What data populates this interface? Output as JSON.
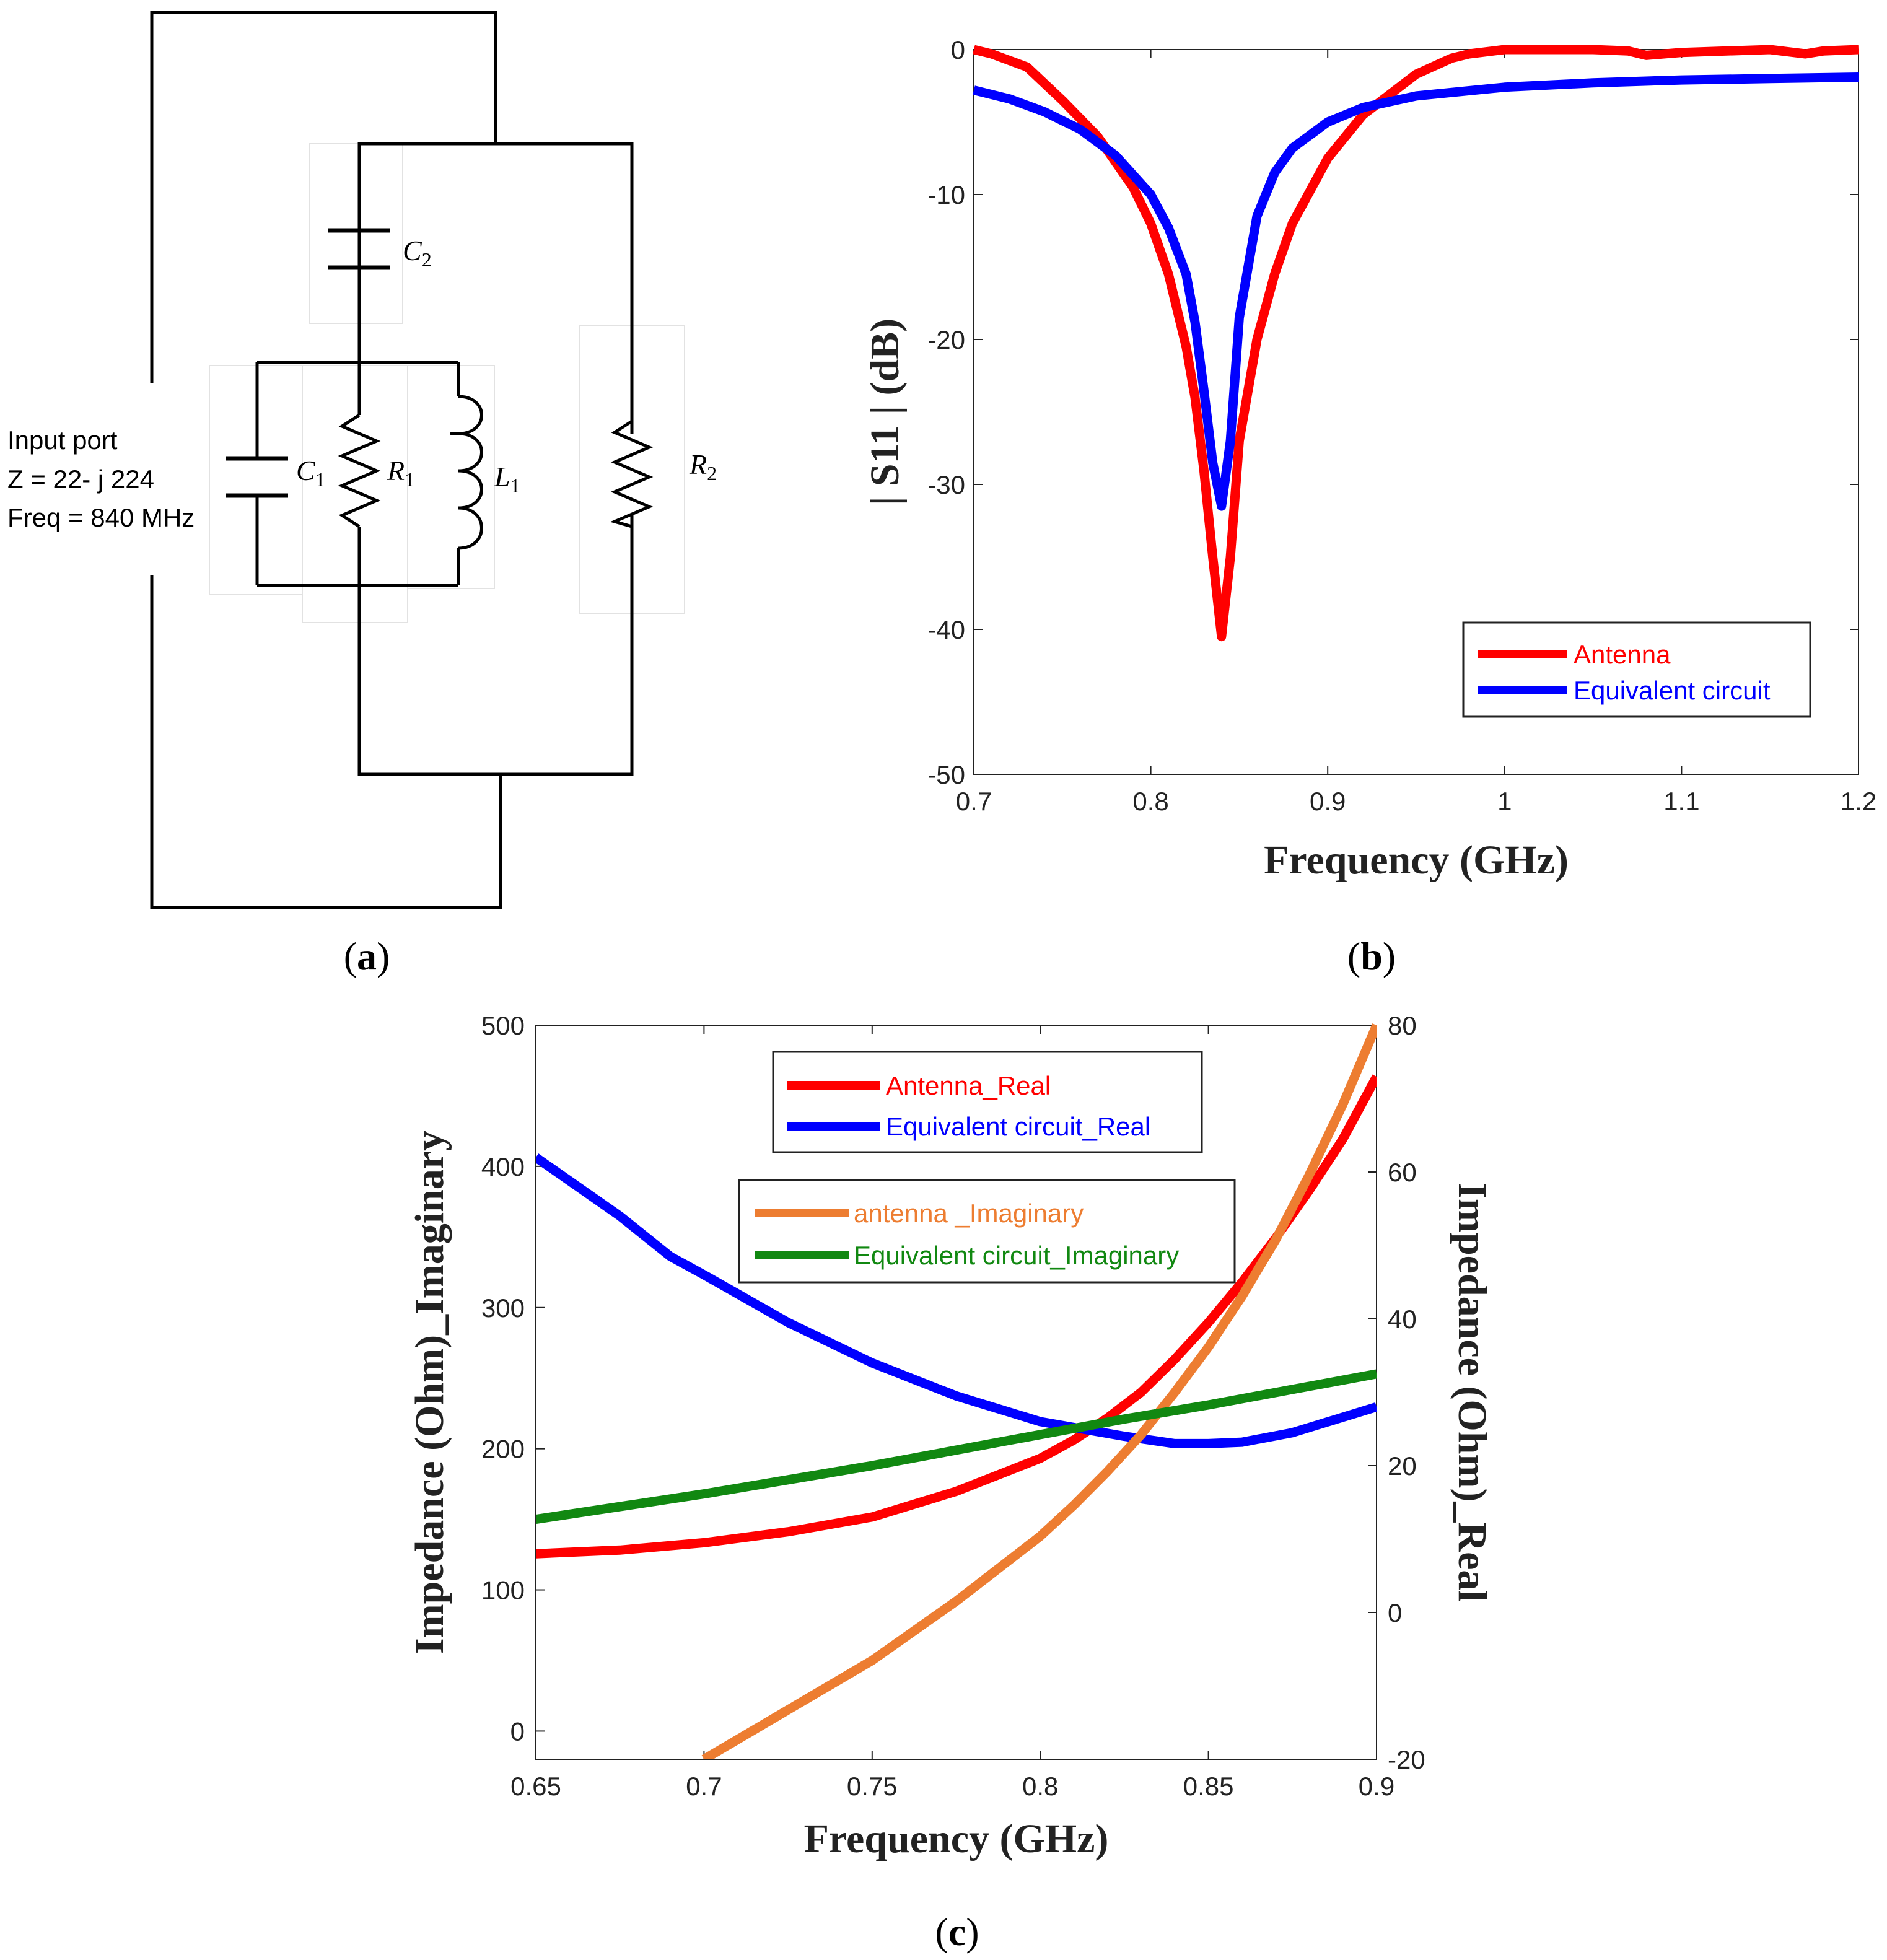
{
  "panel_a": {
    "caption": "a",
    "port_line1": "Input port",
    "port_line2": "Z = 22- j 224",
    "port_line3": "Freq = 840 MHz",
    "c2": "C",
    "c2_sub": "2",
    "c1": "C",
    "c1_sub": "1",
    "r1": "R",
    "r1_sub": "1",
    "l1": "L",
    "l1_sub": "1",
    "r2": "R",
    "r2_sub": "2"
  },
  "panel_b": {
    "caption": "b"
  },
  "panel_c": {
    "caption": "c"
  },
  "chart_data": [
    {
      "type": "line",
      "xlabel": "Frequency (GHz)",
      "ylabel": "| S11 | (dB)",
      "xlim": [
        0.7,
        1.2
      ],
      "ylim": [
        -50,
        0
      ],
      "xticks": [
        0.7,
        0.8,
        0.9,
        1,
        1.1,
        1.2
      ],
      "yticks": [
        0,
        -10,
        -20,
        -30,
        -40,
        -50
      ],
      "legend_position": "bottom-right",
      "series": [
        {
          "name": "Antenna",
          "color": "#ff0000",
          "x": [
            0.7,
            0.71,
            0.73,
            0.75,
            0.77,
            0.79,
            0.8,
            0.81,
            0.82,
            0.825,
            0.83,
            0.835,
            0.84,
            0.845,
            0.85,
            0.86,
            0.87,
            0.88,
            0.9,
            0.92,
            0.95,
            0.97,
            0.98,
            1.0,
            1.05,
            1.07,
            1.08,
            1.1,
            1.15,
            1.17,
            1.18,
            1.2
          ],
          "y": [
            0.0,
            -0.3,
            -1.2,
            -3.5,
            -6.0,
            -9.5,
            -12.0,
            -15.5,
            -20.5,
            -24.0,
            -29.0,
            -35.0,
            -40.5,
            -35.0,
            -27.0,
            -20.0,
            -15.5,
            -12.0,
            -7.5,
            -4.5,
            -1.7,
            -0.6,
            -0.3,
            0.0,
            0.0,
            -0.1,
            -0.4,
            -0.2,
            0.0,
            -0.3,
            -0.1,
            0.0
          ]
        },
        {
          "name": "Equivalent circuit",
          "color": "#0000ff",
          "x": [
            0.7,
            0.72,
            0.74,
            0.76,
            0.78,
            0.8,
            0.81,
            0.82,
            0.825,
            0.83,
            0.835,
            0.84,
            0.845,
            0.85,
            0.86,
            0.87,
            0.88,
            0.9,
            0.92,
            0.95,
            1.0,
            1.05,
            1.1,
            1.15,
            1.2
          ],
          "y": [
            -2.8,
            -3.4,
            -4.3,
            -5.5,
            -7.3,
            -10.0,
            -12.3,
            -15.5,
            -18.8,
            -23.5,
            -28.5,
            -31.5,
            -27.0,
            -18.5,
            -11.5,
            -8.5,
            -6.8,
            -5.0,
            -4.0,
            -3.2,
            -2.6,
            -2.3,
            -2.1,
            -2.0,
            -1.9
          ]
        }
      ]
    },
    {
      "type": "line",
      "xlabel": "Frequency (GHz)",
      "ylabel_left": "Impedance (Ohm)_Imaginary",
      "ylabel_right": "Impedance (Ohm)_Real",
      "xlim": [
        0.65,
        0.9
      ],
      "ylim_left": [
        -20,
        500
      ],
      "ylim_right": [
        -20,
        80
      ],
      "xticks": [
        0.65,
        0.7,
        0.75,
        0.8,
        0.85,
        0.9
      ],
      "yticks_left": [
        0,
        100,
        200,
        300,
        400,
        500
      ],
      "yticks_right": [
        -20,
        0,
        20,
        40,
        60,
        80
      ],
      "series": [
        {
          "name": "Antenna_Real",
          "axis": "right",
          "color": "#ff0000",
          "x": [
            0.65,
            0.675,
            0.7,
            0.725,
            0.75,
            0.775,
            0.8,
            0.81,
            0.82,
            0.83,
            0.84,
            0.85,
            0.86,
            0.87,
            0.88,
            0.89,
            0.9
          ],
          "y": [
            8.0,
            8.5,
            9.5,
            11.0,
            13.0,
            16.5,
            21.0,
            23.5,
            26.5,
            30.0,
            34.5,
            39.5,
            45.0,
            51.0,
            57.5,
            64.5,
            73.0
          ]
        },
        {
          "name": "Equivalent circuit_Real",
          "axis": "right",
          "color": "#0000ff",
          "x": [
            0.65,
            0.675,
            0.69,
            0.7,
            0.725,
            0.75,
            0.775,
            0.8,
            0.825,
            0.84,
            0.85,
            0.86,
            0.875,
            0.9
          ],
          "y": [
            62.0,
            54.0,
            48.5,
            46.0,
            39.5,
            34.0,
            29.5,
            26.0,
            24.0,
            23.0,
            23.0,
            23.2,
            24.5,
            28.0
          ]
        },
        {
          "name": "antenna _Imaginary",
          "axis": "left",
          "color": "#ed7d31",
          "x": [
            0.7,
            0.725,
            0.75,
            0.775,
            0.8,
            0.81,
            0.82,
            0.83,
            0.84,
            0.85,
            0.86,
            0.87,
            0.88,
            0.89,
            0.9
          ],
          "y": [
            -20,
            15,
            50,
            92,
            138,
            160,
            184,
            210,
            240,
            272,
            308,
            348,
            394,
            444,
            500
          ]
        },
        {
          "name": "Equivalent circuit_Imaginary",
          "axis": "left",
          "color": "#118811",
          "x": [
            0.65,
            0.675,
            0.7,
            0.725,
            0.75,
            0.775,
            0.8,
            0.825,
            0.85,
            0.875,
            0.9
          ],
          "y": [
            150,
            159,
            168,
            178,
            188,
            199,
            210,
            221,
            231,
            242,
            253
          ]
        }
      ]
    }
  ]
}
